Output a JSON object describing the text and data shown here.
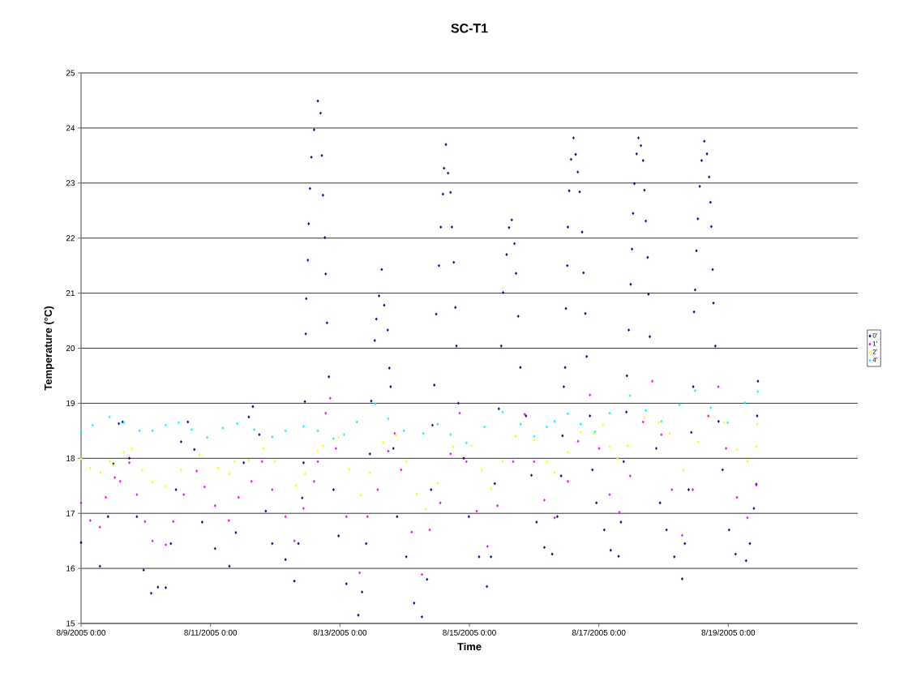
{
  "chart_data": {
    "type": "scatter",
    "title": "SC-T1",
    "xlabel": "Time",
    "ylabel": "Temperature (°C)",
    "xlim": [
      "2005-08-09T00:00",
      "2005-08-21T00:00"
    ],
    "xticks": [
      {
        "value": "2005-08-09T00:00",
        "label": "8/9/2005 0:00"
      },
      {
        "value": "2005-08-11T00:00",
        "label": "8/11/2005 0:00"
      },
      {
        "value": "2005-08-13T00:00",
        "label": "8/13/2005 0:00"
      },
      {
        "value": "2005-08-15T00:00",
        "label": "8/15/2005 0:00"
      },
      {
        "value": "2005-08-17T00:00",
        "label": "8/17/2005 0:00"
      },
      {
        "value": "2005-08-19T00:00",
        "label": "8/19/2005 0:00"
      }
    ],
    "ylim": [
      15,
      25
    ],
    "yticks": [
      15,
      16,
      17,
      18,
      19,
      20,
      21,
      22,
      23,
      24,
      25
    ],
    "grid": "y",
    "legend": "right",
    "marker": "diamond",
    "series": [
      {
        "name": "0'",
        "color": "#000080",
        "x": [
          "2005-08-09T00:00",
          "2005-08-09T07:00",
          "2005-08-09T10:00",
          "2005-08-09T12:00",
          "2005-08-09T14:00",
          "2005-08-09T15:24",
          "2005-08-09T17:54",
          "2005-08-09T20:42",
          "2005-08-09T23:12",
          "2005-08-10T02:00",
          "2005-08-10T04:30",
          "2005-08-10T07:24",
          "2005-08-10T09:18",
          "2005-08-10T11:12",
          "2005-08-10T13:06",
          "2005-08-10T15:36",
          "2005-08-10T18:00",
          "2005-08-10T20:54",
          "2005-08-11T01:42",
          "2005-08-11T07:00",
          "2005-08-11T09:24",
          "2005-08-11T12:18",
          "2005-08-11T14:12",
          "2005-08-11T15:42",
          "2005-08-11T18:06",
          "2005-08-11T20:30",
          "2005-08-11T22:54",
          "2005-08-12T03:48",
          "2005-08-12T07:06",
          "2005-08-12T08:36",
          "2005-08-12T10:00",
          "2005-08-12T10:30",
          "2005-08-12T11:00",
          "2005-08-12T11:18",
          "2005-08-12T11:30",
          "2005-08-12T12:06",
          "2005-08-12T12:24",
          "2005-08-12T12:54",
          "2005-08-12T13:24",
          "2005-08-12T14:24",
          "2005-08-12T15:48",
          "2005-08-12T16:48",
          "2005-08-12T17:18",
          "2005-08-12T17:42",
          "2005-08-12T18:24",
          "2005-08-12T18:42",
          "2005-08-12T19:12",
          "2005-08-12T19:54",
          "2005-08-12T21:36",
          "2005-08-12T23:30",
          "2005-08-13T02:24",
          "2005-08-13T06:48",
          "2005-08-13T08:12",
          "2005-08-13T09:42",
          "2005-08-13T11:06",
          "2005-08-13T11:36",
          "2005-08-13T12:54",
          "2005-08-13T13:30",
          "2005-08-13T14:30",
          "2005-08-13T15:30",
          "2005-08-13T16:24",
          "2005-08-13T17:42",
          "2005-08-13T18:18",
          "2005-08-13T18:48",
          "2005-08-13T19:48",
          "2005-08-13T21:12",
          "2005-08-14T00:36",
          "2005-08-14T03:30",
          "2005-08-14T06:24",
          "2005-08-14T08:18",
          "2005-08-14T09:48",
          "2005-08-14T10:18",
          "2005-08-14T11:00",
          "2005-08-14T11:42",
          "2005-08-14T12:42",
          "2005-08-14T13:24",
          "2005-08-14T14:12",
          "2005-08-14T14:36",
          "2005-08-14T15:18",
          "2005-08-14T16:06",
          "2005-08-14T17:00",
          "2005-08-14T17:30",
          "2005-08-14T18:12",
          "2005-08-14T18:48",
          "2005-08-14T19:12",
          "2005-08-14T19:54",
          "2005-08-14T21:54",
          "2005-08-14T23:48",
          "2005-08-15T03:36",
          "2005-08-15T06:30",
          "2005-08-15T08:00",
          "2005-08-15T09:24",
          "2005-08-15T10:54",
          "2005-08-15T11:48",
          "2005-08-15T12:30",
          "2005-08-15T13:48",
          "2005-08-15T14:42",
          "2005-08-15T15:42",
          "2005-08-15T16:42",
          "2005-08-15T17:18",
          "2005-08-15T18:06",
          "2005-08-15T18:54",
          "2005-08-15T21:00",
          "2005-08-15T23:00",
          "2005-08-16T00:54",
          "2005-08-16T03:48",
          "2005-08-16T06:42",
          "2005-08-16T08:36",
          "2005-08-16T10:00",
          "2005-08-16T10:30",
          "2005-08-16T11:00",
          "2005-08-16T11:30",
          "2005-08-16T11:48",
          "2005-08-16T12:18",
          "2005-08-16T12:30",
          "2005-08-16T13:00",
          "2005-08-16T13:42",
          "2005-08-16T14:36",
          "2005-08-16T15:24",
          "2005-08-16T16:12",
          "2005-08-16T16:54",
          "2005-08-16T17:48",
          "2005-08-16T18:18",
          "2005-08-16T19:00",
          "2005-08-16T19:30",
          "2005-08-16T20:42",
          "2005-08-16T21:36",
          "2005-08-16T23:06",
          "2005-08-17T02:00",
          "2005-08-17T04:24",
          "2005-08-17T07:18",
          "2005-08-17T08:12",
          "2005-08-17T09:12",
          "2005-08-17T10:12",
          "2005-08-17T10:24",
          "2005-08-17T11:06",
          "2005-08-17T11:48",
          "2005-08-17T12:18",
          "2005-08-17T12:42",
          "2005-08-17T13:12",
          "2005-08-17T14:00",
          "2005-08-17T14:42",
          "2005-08-17T15:36",
          "2005-08-17T16:24",
          "2005-08-17T16:54",
          "2005-08-17T17:24",
          "2005-08-17T18:06",
          "2005-08-17T18:24",
          "2005-08-17T18:54",
          "2005-08-17T21:18",
          "2005-08-17T22:42",
          "2005-08-18T01:06",
          "2005-08-18T04:00",
          "2005-08-18T06:54",
          "2005-08-18T07:54",
          "2005-08-18T09:18",
          "2005-08-18T10:18",
          "2005-08-18T11:00",
          "2005-08-18T11:18",
          "2005-08-18T11:42",
          "2005-08-18T12:12",
          "2005-08-18T12:42",
          "2005-08-18T13:24",
          "2005-08-18T14:06",
          "2005-08-18T15:06",
          "2005-08-18T16:06",
          "2005-08-18T16:54",
          "2005-08-18T17:24",
          "2005-08-18T17:42",
          "2005-08-18T18:12",
          "2005-08-18T18:30",
          "2005-08-18T19:12",
          "2005-08-18T20:24",
          "2005-08-18T21:54",
          "2005-08-19T00:18",
          "2005-08-19T02:42",
          "2005-08-19T06:36",
          "2005-08-19T08:00",
          "2005-08-19T09:30",
          "2005-08-19T10:24",
          "2005-08-19T10:42",
          "2005-08-19T11:00"
        ],
        "values": [
          16.47,
          16.04,
          16.94,
          17.9,
          18.63,
          18.66,
          18.0,
          16.94,
          15.97,
          15.55,
          15.66,
          15.65,
          16.45,
          17.43,
          18.3,
          18.66,
          18.16,
          16.84,
          16.36,
          16.04,
          16.65,
          17.92,
          18.75,
          18.94,
          18.43,
          17.04,
          16.45,
          16.16,
          15.77,
          16.45,
          17.28,
          17.92,
          19.03,
          20.26,
          20.9,
          21.6,
          22.26,
          22.9,
          23.47,
          23.97,
          24.49,
          24.27,
          23.5,
          22.78,
          22.01,
          21.35,
          20.46,
          19.48,
          17.43,
          16.59,
          15.72,
          15.15,
          15.57,
          16.45,
          18.08,
          19.04,
          20.14,
          20.53,
          20.95,
          21.43,
          20.78,
          20.33,
          19.64,
          19.3,
          18.18,
          16.94,
          16.21,
          15.37,
          15.12,
          15.8,
          17.43,
          18.6,
          19.33,
          20.62,
          21.5,
          22.2,
          22.8,
          23.27,
          23.7,
          23.18,
          22.83,
          22.2,
          21.56,
          20.74,
          20.04,
          19.0,
          18.0,
          16.94,
          16.21,
          15.67,
          16.21,
          17.54,
          18.9,
          20.04,
          21.01,
          21.7,
          22.19,
          22.33,
          21.9,
          21.36,
          20.58,
          19.65,
          18.77,
          17.69,
          16.84,
          16.38,
          16.26,
          16.94,
          17.68,
          18.41,
          19.3,
          19.65,
          20.72,
          21.5,
          22.2,
          22.86,
          23.43,
          23.82,
          23.52,
          23.2,
          22.84,
          22.11,
          21.37,
          20.63,
          19.85,
          18.77,
          17.79,
          17.19,
          16.7,
          16.33,
          16.22,
          16.84,
          17.94,
          18.84,
          19.5,
          20.33,
          21.16,
          21.8,
          22.45,
          22.99,
          23.53,
          23.82,
          23.68,
          23.41,
          22.87,
          22.31,
          21.65,
          20.98,
          20.21,
          18.18,
          17.19,
          16.7,
          16.21,
          15.81,
          16.45,
          17.43,
          18.47,
          19.3,
          20.66,
          21.06,
          21.77,
          22.35,
          22.94,
          23.41,
          23.76,
          23.53,
          23.11,
          22.65,
          22.21,
          21.43,
          20.82,
          20.04,
          18.67,
          17.79,
          16.7,
          16.26,
          16.14,
          16.45,
          17.09,
          17.53,
          18.77,
          19.4
        ]
      },
      {
        "name": "1'",
        "color": "#ff00ff",
        "x": [
          "2005-08-09T00:00",
          "2005-08-09T03:24",
          "2005-08-09T07:00",
          "2005-08-09T09:12",
          "2005-08-09T12:30",
          "2005-08-09T14:30",
          "2005-08-09T17:54",
          "2005-08-09T20:42",
          "2005-08-09T23:42",
          "2005-08-10T02:30",
          "2005-08-10T07:24",
          "2005-08-10T10:12",
          "2005-08-10T14:06",
          "2005-08-10T18:54",
          "2005-08-10T21:48",
          "2005-08-11T01:42",
          "2005-08-11T06:48",
          "2005-08-11T10:24",
          "2005-08-11T15:12",
          "2005-08-11T19:06",
          "2005-08-11T22:54",
          "2005-08-12T03:48",
          "2005-08-12T07:06",
          "2005-08-12T10:30",
          "2005-08-12T14:24",
          "2005-08-12T15:48",
          "2005-08-12T18:42",
          "2005-08-12T20:24",
          "2005-08-12T22:30",
          "2005-08-13T02:24",
          "2005-08-13T07:18",
          "2005-08-13T10:12",
          "2005-08-13T14:00",
          "2005-08-13T17:54",
          "2005-08-13T20:18",
          "2005-08-13T22:42",
          "2005-08-14T02:36",
          "2005-08-14T06:24",
          "2005-08-14T09:18",
          "2005-08-14T13:12",
          "2005-08-14T17:00",
          "2005-08-14T20:24",
          "2005-08-14T22:54",
          "2005-08-15T02:42",
          "2005-08-15T06:42",
          "2005-08-15T10:24",
          "2005-08-15T16:12",
          "2005-08-15T20:30",
          "2005-08-16T00:00",
          "2005-08-16T03:48",
          "2005-08-16T07:36",
          "2005-08-16T12:30",
          "2005-08-16T16:18",
          "2005-08-16T20:42",
          "2005-08-17T00:06",
          "2005-08-17T04:00",
          "2005-08-17T07:36",
          "2005-08-17T11:36",
          "2005-08-17T16:24",
          "2005-08-17T19:48",
          "2005-08-17T23:12",
          "2005-08-18T03:06",
          "2005-08-18T06:54",
          "2005-08-18T10:48",
          "2005-08-18T16:36",
          "2005-08-18T20:18",
          "2005-08-18T23:12",
          "2005-08-19T03:12",
          "2005-08-19T07:06",
          "2005-08-19T10:24"
        ],
        "values": [
          17.19,
          16.87,
          16.75,
          17.29,
          17.65,
          17.58,
          17.92,
          17.34,
          16.85,
          16.5,
          16.43,
          16.85,
          17.34,
          17.77,
          17.48,
          17.14,
          16.87,
          17.29,
          17.58,
          17.94,
          17.43,
          16.94,
          16.5,
          17.09,
          17.58,
          17.94,
          18.82,
          19.09,
          18.18,
          16.94,
          15.92,
          16.94,
          17.43,
          18.13,
          18.45,
          17.79,
          16.66,
          15.89,
          16.7,
          17.19,
          18.08,
          18.82,
          17.94,
          17.04,
          16.4,
          17.14,
          17.94,
          18.8,
          17.94,
          17.24,
          16.92,
          17.58,
          18.31,
          19.15,
          18.18,
          17.34,
          17.02,
          17.68,
          18.66,
          19.4,
          18.43,
          17.43,
          16.6,
          17.43,
          18.77,
          19.3,
          18.18,
          17.29,
          16.92,
          17.51
        ]
      },
      {
        "name": "2'",
        "color": "#ffff00",
        "x": [
          "2005-08-09T00:00",
          "2005-08-09T03:24",
          "2005-08-09T07:12",
          "2005-08-09T10:36",
          "2005-08-09T12:06",
          "2005-08-09T15:54",
          "2005-08-09T18:48",
          "2005-08-09T22:42",
          "2005-08-10T02:30",
          "2005-08-10T07:24",
          "2005-08-10T13:06",
          "2005-08-10T19:54",
          "2005-08-11T02:42",
          "2005-08-11T07:00",
          "2005-08-11T09:00",
          "2005-08-11T14:12",
          "2005-08-11T19:36",
          "2005-08-11T23:54",
          "2005-08-12T07:36",
          "2005-08-12T11:00",
          "2005-08-12T15:48",
          "2005-08-12T17:42",
          "2005-08-12T23:30",
          "2005-08-13T03:24",
          "2005-08-13T07:42",
          "2005-08-13T11:06",
          "2005-08-13T16:00",
          "2005-08-13T20:42",
          "2005-08-14T00:36",
          "2005-08-14T04:24",
          "2005-08-14T07:54",
          "2005-08-14T12:12",
          "2005-08-14T18:00",
          "2005-08-15T00:48",
          "2005-08-15T04:36",
          "2005-08-15T08:00",
          "2005-08-15T12:18",
          "2005-08-15T17:12",
          "2005-08-16T00:00",
          "2005-08-16T04:42",
          "2005-08-16T07:36",
          "2005-08-16T12:30",
          "2005-08-16T17:18",
          "2005-08-16T22:12",
          "2005-08-17T01:30",
          "2005-08-17T04:00",
          "2005-08-17T06:54",
          "2005-08-17T10:42",
          "2005-08-17T17:00",
          "2005-08-17T22:18",
          "2005-08-18T02:12",
          "2005-08-18T07:30",
          "2005-08-18T12:48",
          "2005-08-18T17:06",
          "2005-08-18T22:24",
          "2005-08-19T03:12",
          "2005-08-19T07:06",
          "2005-08-19T10:24",
          "2005-08-19T10:36"
        ],
        "values": [
          17.99,
          17.82,
          17.74,
          17.94,
          17.87,
          18.11,
          18.18,
          17.79,
          17.57,
          17.49,
          17.79,
          18.06,
          17.82,
          17.72,
          17.94,
          17.96,
          18.18,
          17.94,
          17.5,
          17.72,
          18.13,
          18.23,
          18.38,
          17.79,
          17.33,
          17.74,
          18.28,
          18.42,
          17.94,
          17.35,
          17.08,
          17.55,
          18.21,
          18.23,
          17.79,
          17.45,
          17.94,
          18.4,
          18.33,
          17.94,
          17.74,
          18.11,
          18.47,
          18.45,
          18.6,
          18.21,
          17.99,
          18.23,
          18.74,
          18.65,
          18.45,
          17.79,
          18.3,
          18.74,
          18.65,
          18.16,
          17.95,
          18.21,
          18.62
        ]
      },
      {
        "name": "4'",
        "color": "#00ffff",
        "x": [
          "2005-08-09T00:00",
          "2005-08-09T04:18",
          "2005-08-09T10:36",
          "2005-08-09T15:54",
          "2005-08-09T21:42",
          "2005-08-10T02:30",
          "2005-08-10T07:24",
          "2005-08-10T12:12",
          "2005-08-10T17:00",
          "2005-08-10T22:48",
          "2005-08-11T04:36",
          "2005-08-11T09:54",
          "2005-08-11T16:12",
          "2005-08-11T22:54",
          "2005-08-12T03:48",
          "2005-08-12T10:30",
          "2005-08-12T15:48",
          "2005-08-12T21:36",
          "2005-08-13T01:30",
          "2005-08-13T06:18",
          "2005-08-13T13:06",
          "2005-08-13T17:54",
          "2005-08-13T23:42",
          "2005-08-14T06:54",
          "2005-08-14T12:12",
          "2005-08-14T17:00",
          "2005-08-14T22:54",
          "2005-08-15T05:36",
          "2005-08-15T12:18",
          "2005-08-15T19:00",
          "2005-08-16T00:00",
          "2005-08-16T04:42",
          "2005-08-16T07:36",
          "2005-08-16T12:30",
          "2005-08-16T17:18",
          "2005-08-16T22:36",
          "2005-08-17T04:00",
          "2005-08-17T11:36",
          "2005-08-17T17:24",
          "2005-08-17T23:12",
          "2005-08-18T05:54",
          "2005-08-18T11:42",
          "2005-08-18T17:30",
          "2005-08-18T23:48",
          "2005-08-19T06:06",
          "2005-08-19T10:54"
        ],
        "values": [
          18.48,
          18.6,
          18.75,
          18.65,
          18.5,
          18.5,
          18.6,
          18.65,
          18.52,
          18.38,
          18.55,
          18.63,
          18.52,
          18.39,
          18.5,
          18.58,
          18.5,
          18.36,
          18.43,
          18.66,
          18.99,
          18.72,
          18.5,
          18.45,
          18.62,
          18.43,
          18.28,
          18.57,
          18.84,
          18.62,
          18.4,
          18.57,
          18.67,
          18.81,
          18.62,
          18.48,
          18.82,
          19.14,
          18.87,
          18.67,
          18.97,
          19.23,
          18.92,
          18.65,
          19.01,
          19.21
        ]
      }
    ]
  }
}
